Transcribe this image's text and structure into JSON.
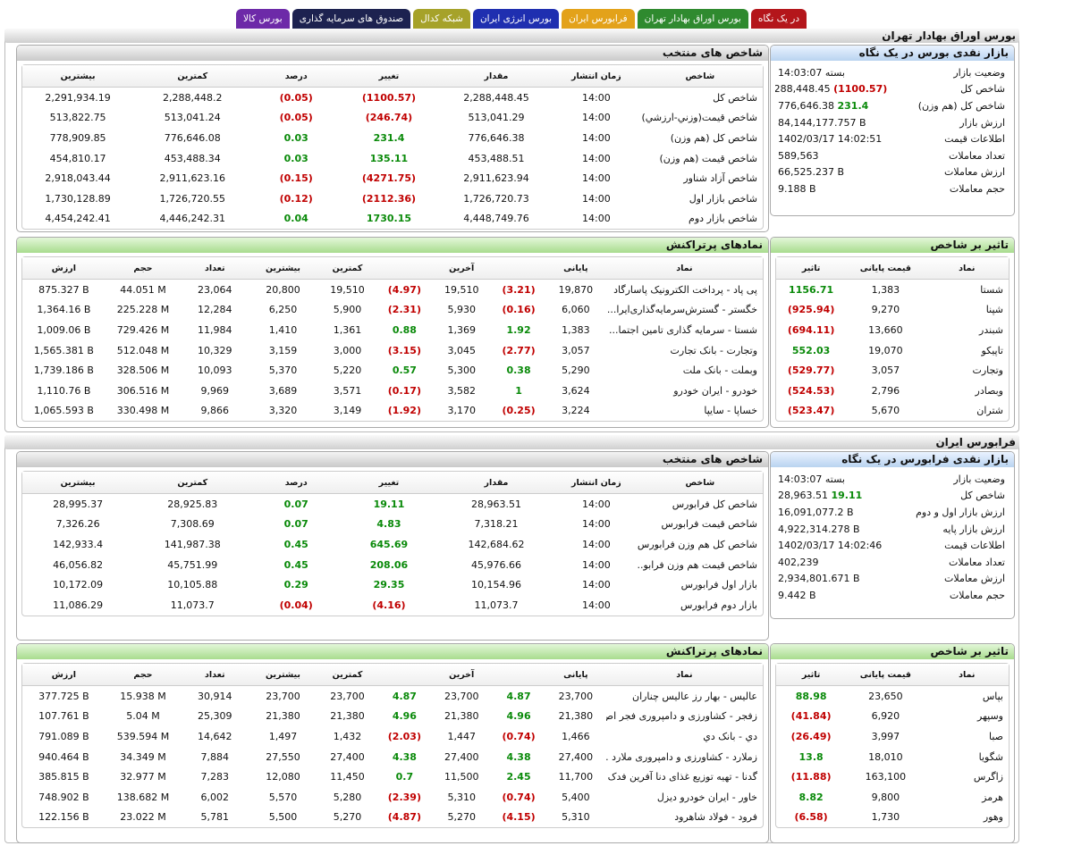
{
  "tabs": [
    "در یک نگاه",
    "بورس اوراق بهادار تهران",
    "فرابورس ایران",
    "بورس انرژی ایران",
    "شبکه کدال",
    "صندوق های سرمایه گذاری",
    "بورس کالا"
  ],
  "sections": [
    {
      "title": "بورس اوراق بهادار تهران",
      "summary": {
        "title": "بازار نقدی بورس در یک نگاه",
        "rows": [
          [
            "وضعیت بازار",
            "بسته 14:03:07"
          ],
          [
            "شاخص کل",
            "2,288,448.45",
            "(1100.57)"
          ],
          [
            "شاخص کل (هم وزن)",
            "776,646.38",
            "231.4"
          ],
          [
            "ارزش بازار",
            "84,144,177.757 B"
          ],
          [
            "اطلاعات قیمت",
            "1402/03/17 14:02:51"
          ],
          [
            "تعداد معاملات",
            "589,563"
          ],
          [
            "ارزش معاملات",
            "66,525.237 B"
          ],
          [
            "حجم معاملات",
            "9.188 B"
          ]
        ]
      },
      "indices": {
        "title": "شاخص های منتخب",
        "headers": [
          "شاخص",
          "زمان انتشار",
          "مقدار",
          "تغییر",
          "درصد",
          "کمترین",
          "بیشترین"
        ],
        "rows": [
          [
            "شاخص کل",
            "14:00",
            "2,288,448.45",
            "(1100.57)",
            "(0.05)",
            "2,288,448.2",
            "2,291,934.19"
          ],
          [
            "شاخص قیمت(وزني-ارزشي)",
            "14:00",
            "513,041.29",
            "(246.74)",
            "(0.05)",
            "513,041.24",
            "513,822.75"
          ],
          [
            "شاخص كل (هم وزن)",
            "14:00",
            "776,646.38",
            "231.4",
            "0.03",
            "776,646.08",
            "778,909.85"
          ],
          [
            "شاخص قيمت (هم وزن)",
            "14:00",
            "453,488.51",
            "135.11",
            "0.03",
            "453,488.34",
            "454,810.17"
          ],
          [
            "شاخص آزاد شناور",
            "14:00",
            "2,911,623.94",
            "(4271.75)",
            "(0.15)",
            "2,911,623.16",
            "2,918,043.44"
          ],
          [
            "شاخص بازار اول",
            "14:00",
            "1,726,720.73",
            "(2112.36)",
            "(0.12)",
            "1,726,720.55",
            "1,730,128.89"
          ],
          [
            "شاخص بازار دوم",
            "14:00",
            "4,448,749.76",
            "1730.15",
            "0.04",
            "4,446,242.31",
            "4,454,242.41"
          ]
        ]
      },
      "active": {
        "title": "نمادهای پرتراکنش",
        "headers": [
          "نماد",
          "پایانی",
          "آخرین",
          "کمترین",
          "بیشترین",
          "تعداد",
          "حجم",
          "ارزش"
        ],
        "rows": [
          [
            "پی پاد - پرداخت الکترونیک پاسارگاد",
            "19,870",
            "(3.21)",
            "19,510",
            "(4.97)",
            "19,510",
            "20,800",
            "23,064",
            "44.051 M",
            "875.327 B"
          ],
          [
            "خگستر - گسترش‌سرمایه‌گذاری‌ایرا...",
            "6,060",
            "(0.16)",
            "5,930",
            "(2.31)",
            "5,900",
            "6,250",
            "12,284",
            "225.228 M",
            "1,364.16 B"
          ],
          [
            "شستا - سرمایه گذاری تامین اجتما...",
            "1,383",
            "1.92",
            "1,369",
            "0.88",
            "1,361",
            "1,410",
            "11,984",
            "729.426 M",
            "1,009.06 B"
          ],
          [
            "وتجارت - بانک تجارت",
            "3,057",
            "(2.77)",
            "3,045",
            "(3.15)",
            "3,000",
            "3,159",
            "10,329",
            "512.048 M",
            "1,565.381 B"
          ],
          [
            "وبملت - بانک ملت",
            "5,290",
            "0.38",
            "5,300",
            "0.57",
            "5,220",
            "5,370",
            "10,093",
            "328.506 M",
            "1,739.186 B"
          ],
          [
            "خودرو - ایران خودرو",
            "3,624",
            "1",
            "3,582",
            "(0.17)",
            "3,571",
            "3,689",
            "9,969",
            "306.516 M",
            "1,110.76 B"
          ],
          [
            "خساپا - سایپا",
            "3,224",
            "(0.25)",
            "3,170",
            "(1.92)",
            "3,149",
            "3,320",
            "9,866",
            "330.498 M",
            "1,065.593 B"
          ]
        ]
      },
      "impact": {
        "title": "تاثیر بر شاخص",
        "headers": [
          "نماد",
          "قیمت پایانی",
          "تاثیر"
        ],
        "rows": [
          [
            "شستا",
            "1,383",
            "1156.71"
          ],
          [
            "شپنا",
            "9,270",
            "(925.94)"
          ],
          [
            "شبندر",
            "13,660",
            "(694.11)"
          ],
          [
            "تاپیکو",
            "19,070",
            "552.03"
          ],
          [
            "وتجارت",
            "3,057",
            "(529.77)"
          ],
          [
            "وبصادر",
            "2,796",
            "(524.53)"
          ],
          [
            "شتران",
            "5,670",
            "(523.47)"
          ]
        ]
      }
    },
    {
      "title": "فرابورس ایران",
      "summary": {
        "title": "بازار نقدی فرابورس در یک نگاه",
        "rows": [
          [
            "وضعیت بازار",
            "بسته 14:03:07"
          ],
          [
            "شاخص کل",
            "28,963.51",
            "19.11"
          ],
          [
            "ارزش بازار اول و دوم",
            "16,091,077.2 B"
          ],
          [
            "ارزش بازار پایه",
            "4,922,314.278 B"
          ],
          [
            "اطلاعات قیمت",
            "1402/03/17 14:02:46"
          ],
          [
            "تعداد معاملات",
            "402,239"
          ],
          [
            "ارزش معاملات",
            "2,934,801.671 B"
          ],
          [
            "حجم معاملات",
            "9.442 B"
          ]
        ]
      },
      "indices": {
        "title": "شاخص های منتخب",
        "headers": [
          "شاخص",
          "زمان انتشار",
          "مقدار",
          "تغییر",
          "درصد",
          "کمترین",
          "بیشترین"
        ],
        "rows": [
          [
            "شاخص کل فرابورس",
            "14:00",
            "28,963.51",
            "19.11",
            "0.07",
            "28,925.83",
            "28,995.37"
          ],
          [
            "شاخص قیمت فرابورس",
            "14:00",
            "7,318.21",
            "4.83",
            "0.07",
            "7,308.69",
            "7,326.26"
          ],
          [
            "شاخص کل هم وزن فرابورس",
            "14:00",
            "142,684.62",
            "645.69",
            "0.45",
            "141,987.38",
            "142,933.4"
          ],
          [
            "شاخص قیمت هم وزن فرابو...",
            "14:00",
            "45,976.66",
            "208.06",
            "0.45",
            "45,751.99",
            "46,056.82"
          ],
          [
            "بازار اول فرابورس",
            "14:00",
            "10,154.96",
            "29.35",
            "0.29",
            "10,105.88",
            "10,172.09"
          ],
          [
            "بازار دوم فرابورس",
            "14:00",
            "11,073.7",
            "(4.16)",
            "(0.04)",
            "11,073.7",
            "11,086.29"
          ]
        ]
      },
      "active": {
        "title": "نمادهای پرتراکنش",
        "headers": [
          "نماد",
          "پایانی",
          "آخرین",
          "کمترین",
          "بیشترین",
          "تعداد",
          "حجم",
          "ارزش"
        ],
        "rows": [
          [
            "عالیس - بهار رز عالیس چناران",
            "23,700",
            "4.87",
            "23,700",
            "4.87",
            "23,700",
            "23,700",
            "30,914",
            "15.938 M",
            "377.725 B"
          ],
          [
            "زفجر - کشاورزی و دامپروری فجر اص...",
            "21,380",
            "4.96",
            "21,380",
            "4.96",
            "21,380",
            "21,380",
            "25,309",
            "5.04 M",
            "107.761 B"
          ],
          [
            "دي - بانک دي",
            "1,466",
            "(0.74)",
            "1,447",
            "(2.03)",
            "1,432",
            "1,497",
            "14,642",
            "539.594 M",
            "791.089 B"
          ],
          [
            "زملارد - کشاورزی و دامپروری ملارد ...",
            "27,400",
            "4.38",
            "27,400",
            "4.38",
            "27,400",
            "27,550",
            "7,884",
            "34.349 M",
            "940.464 B"
          ],
          [
            "گدنا - تهیه توزیع غذای دنا آفرین فدک",
            "11,700",
            "2.45",
            "11,500",
            "0.7",
            "11,450",
            "12,080",
            "7,283",
            "32.977 M",
            "385.815 B"
          ],
          [
            "خاور - ایران خودرو دیزل",
            "5,400",
            "(0.74)",
            "5,310",
            "(2.39)",
            "5,280",
            "5,570",
            "6,002",
            "138.682 M",
            "748.902 B"
          ],
          [
            "فرود - فولاد شاهرود",
            "5,310",
            "(4.15)",
            "5,270",
            "(4.87)",
            "5,270",
            "5,500",
            "5,781",
            "23.022 M",
            "122.156 B"
          ]
        ]
      },
      "impact": {
        "title": "تاثیر بر شاخص",
        "headers": [
          "نماد",
          "قیمت پایانی",
          "تاثیر"
        ],
        "rows": [
          [
            "بپاس",
            "23,650",
            "88.98"
          ],
          [
            "وسپهر",
            "6,920",
            "(41.84)"
          ],
          [
            "صبا",
            "3,997",
            "(26.49)"
          ],
          [
            "شگویا",
            "18,010",
            "13.8"
          ],
          [
            "زاگرس",
            "163,100",
            "(11.88)"
          ],
          [
            "هرمز",
            "9,800",
            "8.82"
          ],
          [
            "وهور",
            "1,730",
            "(6.58)"
          ]
        ]
      }
    }
  ]
}
